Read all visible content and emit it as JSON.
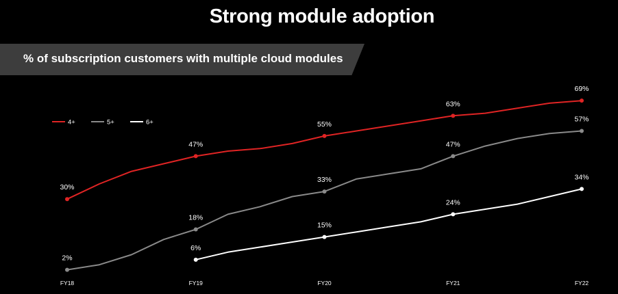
{
  "title": "Strong module adoption",
  "subtitle": "% of subscription customers with multiple cloud modules",
  "colors": {
    "background": "#000000",
    "banner": "#3d3d3d",
    "s4": "#e02424",
    "s5": "#8a8a8a",
    "s6": "#ffffff"
  },
  "chart_data": {
    "type": "line",
    "title": "% of subscription customers with multiple cloud modules",
    "x_labels": [
      "FY18",
      "FY19",
      "FY20",
      "FY21",
      "FY22"
    ],
    "xlim": [
      0,
      4
    ],
    "ylim": [
      0,
      75
    ],
    "grid": false,
    "legend_position": "top-left",
    "series": [
      {
        "name": "4+",
        "color": "#e02424",
        "x": [
          0,
          0.25,
          0.5,
          0.75,
          1,
          1.25,
          1.5,
          1.75,
          2,
          2.25,
          2.5,
          2.75,
          3,
          3.25,
          3.5,
          3.75,
          4
        ],
        "values": [
          30,
          36,
          41,
          44,
          47,
          49,
          50,
          52,
          55,
          57,
          59,
          61,
          63,
          64,
          66,
          68,
          69
        ],
        "markers": [
          0,
          4,
          8,
          12,
          16
        ],
        "labels": [
          "30%",
          "47%",
          "55%",
          "63%",
          "69%"
        ]
      },
      {
        "name": "5+",
        "color": "#8a8a8a",
        "x": [
          0,
          0.25,
          0.5,
          0.75,
          1,
          1.25,
          1.5,
          1.75,
          2,
          2.25,
          2.5,
          2.75,
          3,
          3.25,
          3.5,
          3.75,
          4
        ],
        "values": [
          2,
          4,
          8,
          14,
          18,
          24,
          27,
          31,
          33,
          38,
          40,
          42,
          47,
          51,
          54,
          56,
          57
        ],
        "markers": [
          0,
          4,
          8,
          12,
          16
        ],
        "labels": [
          "2%",
          "18%",
          "33%",
          "47%",
          "57%"
        ]
      },
      {
        "name": "6+",
        "color": "#ffffff",
        "x": [
          1,
          1.25,
          1.5,
          1.75,
          2,
          2.25,
          2.5,
          2.75,
          3,
          3.25,
          3.5,
          3.75,
          4
        ],
        "values": [
          6,
          9,
          11,
          13,
          15,
          17,
          19,
          21,
          24,
          26,
          28,
          31,
          34
        ],
        "markers": [
          0,
          4,
          8,
          12
        ],
        "labels": [
          "6%",
          "15%",
          "24%",
          "34%"
        ]
      }
    ]
  }
}
